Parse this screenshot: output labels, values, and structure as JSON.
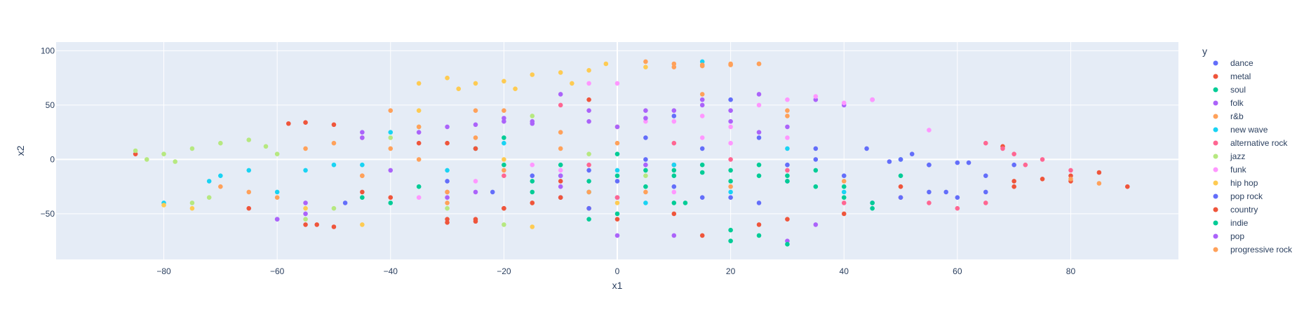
{
  "chart_data": {
    "type": "scatter",
    "title": "",
    "xlabel": "x1",
    "ylabel": "x2",
    "xlim": [
      -99,
      99
    ],
    "ylim": [
      -92,
      108
    ],
    "xticks": [
      -80,
      -60,
      -40,
      -20,
      0,
      20,
      40,
      60,
      80
    ],
    "yticks": [
      -50,
      0,
      50,
      100
    ],
    "tick_labels": {
      "x": [
        "−80",
        "−60",
        "−40",
        "−20",
        "0",
        "20",
        "40",
        "60",
        "80"
      ],
      "y": [
        "−50",
        "0",
        "50",
        "100"
      ]
    },
    "grid": true,
    "legend": {
      "title": "y",
      "placement": "right"
    },
    "series": [
      {
        "name": "dance",
        "color": "#636efa",
        "points": [
          [
            -48,
            -40
          ],
          [
            -22,
            -30
          ],
          [
            0,
            -35
          ],
          [
            5,
            20
          ],
          [
            10,
            40
          ],
          [
            30,
            -20
          ],
          [
            55,
            -5
          ],
          [
            58,
            -30
          ],
          [
            60,
            -35
          ],
          [
            62,
            -3
          ],
          [
            48,
            -2
          ],
          [
            52,
            5
          ],
          [
            15,
            -35
          ],
          [
            35,
            0
          ],
          [
            65,
            -15
          ],
          [
            -5,
            -10
          ],
          [
            20,
            55
          ],
          [
            -30,
            -20
          ],
          [
            44,
            10
          ],
          [
            70,
            -5
          ]
        ]
      },
      {
        "name": "metal",
        "color": "#ef553b",
        "points": [
          [
            -55,
            34
          ],
          [
            -50,
            32
          ],
          [
            -58,
            33
          ],
          [
            -30,
            -55
          ],
          [
            -25,
            -57
          ],
          [
            -53,
            -60
          ],
          [
            -85,
            5
          ],
          [
            70,
            -20
          ],
          [
            80,
            -15
          ],
          [
            85,
            -12
          ],
          [
            75,
            -18
          ],
          [
            90,
            -25
          ],
          [
            68,
            12
          ],
          [
            -30,
            15
          ],
          [
            -20,
            -45
          ],
          [
            -10,
            -20
          ],
          [
            50,
            -25
          ],
          [
            -40,
            -35
          ],
          [
            10,
            -5
          ],
          [
            -5,
            -45
          ]
        ]
      },
      {
        "name": "soul",
        "color": "#00cc96",
        "points": [
          [
            0,
            -15
          ],
          [
            10,
            -10
          ],
          [
            20,
            -20
          ],
          [
            15,
            -12
          ],
          [
            5,
            -25
          ],
          [
            -5,
            -30
          ],
          [
            25,
            -5
          ],
          [
            30,
            -15
          ],
          [
            -15,
            -20
          ],
          [
            -20,
            -5
          ],
          [
            35,
            -10
          ],
          [
            40,
            -25
          ],
          [
            45,
            -45
          ],
          [
            -25,
            10
          ],
          [
            -35,
            -25
          ],
          [
            20,
            -65
          ],
          [
            25,
            -70
          ],
          [
            -45,
            -35
          ],
          [
            0,
            5
          ],
          [
            12,
            -40
          ]
        ]
      },
      {
        "name": "folk",
        "color": "#ab63fa",
        "points": [
          [
            -20,
            35
          ],
          [
            -15,
            33
          ],
          [
            -5,
            35
          ],
          [
            -30,
            30
          ],
          [
            -60,
            -55
          ],
          [
            -25,
            -30
          ],
          [
            15,
            55
          ],
          [
            25,
            60
          ],
          [
            35,
            55
          ],
          [
            -10,
            60
          ],
          [
            5,
            45
          ],
          [
            -45,
            25
          ],
          [
            -10,
            -25
          ],
          [
            -40,
            -10
          ],
          [
            20,
            45
          ],
          [
            40,
            50
          ],
          [
            -55,
            -40
          ],
          [
            0,
            -70
          ],
          [
            30,
            -75
          ],
          [
            45,
            55
          ]
        ]
      },
      {
        "name": "r&b",
        "color": "#ffa15a",
        "points": [
          [
            10,
            88
          ],
          [
            15,
            86
          ],
          [
            20,
            87
          ],
          [
            25,
            88
          ],
          [
            5,
            90
          ],
          [
            -20,
            45
          ],
          [
            -40,
            45
          ],
          [
            -50,
            15
          ],
          [
            -60,
            -35
          ],
          [
            -30,
            -40
          ],
          [
            0,
            30
          ],
          [
            -25,
            20
          ],
          [
            -10,
            10
          ],
          [
            -45,
            -15
          ],
          [
            -70,
            -25
          ],
          [
            15,
            60
          ],
          [
            30,
            40
          ],
          [
            -35,
            0
          ],
          [
            -15,
            -40
          ],
          [
            -5,
            -30
          ]
        ]
      },
      {
        "name": "new wave",
        "color": "#19d3f3",
        "points": [
          [
            -70,
            -15
          ],
          [
            -65,
            -10
          ],
          [
            -72,
            -20
          ],
          [
            -55,
            -10
          ],
          [
            -50,
            -5
          ],
          [
            10,
            -5
          ],
          [
            20,
            -30
          ],
          [
            -45,
            -5
          ],
          [
            -30,
            -10
          ],
          [
            0,
            -10
          ],
          [
            5,
            -40
          ],
          [
            -20,
            15
          ],
          [
            30,
            10
          ],
          [
            -60,
            -30
          ],
          [
            15,
            90
          ],
          [
            -10,
            -15
          ],
          [
            40,
            -30
          ],
          [
            50,
            0
          ],
          [
            -40,
            25
          ],
          [
            -80,
            -40
          ]
        ]
      },
      {
        "name": "alternative rock",
        "color": "#ff6692",
        "points": [
          [
            70,
            5
          ],
          [
            75,
            0
          ],
          [
            68,
            10
          ],
          [
            65,
            15
          ],
          [
            72,
            -5
          ],
          [
            55,
            -40
          ],
          [
            60,
            -45
          ],
          [
            65,
            -40
          ],
          [
            -30,
            -30
          ],
          [
            -20,
            -15
          ],
          [
            10,
            15
          ],
          [
            40,
            -40
          ],
          [
            -10,
            50
          ],
          [
            20,
            0
          ],
          [
            30,
            -10
          ],
          [
            -45,
            20
          ],
          [
            50,
            -35
          ],
          [
            80,
            -10
          ],
          [
            -5,
            -5
          ],
          [
            0,
            -35
          ]
        ]
      },
      {
        "name": "jazz",
        "color": "#b6e880",
        "points": [
          [
            -85,
            8
          ],
          [
            -80,
            5
          ],
          [
            -75,
            10
          ],
          [
            -70,
            15
          ],
          [
            -65,
            18
          ],
          [
            -62,
            12
          ],
          [
            -78,
            -2
          ],
          [
            -83,
            0
          ],
          [
            -60,
            5
          ],
          [
            -72,
            -35
          ],
          [
            -75,
            -40
          ],
          [
            -40,
            20
          ],
          [
            -35,
            30
          ],
          [
            -5,
            5
          ],
          [
            -55,
            -55
          ],
          [
            -20,
            -60
          ],
          [
            5,
            -15
          ],
          [
            -50,
            -45
          ],
          [
            -30,
            -45
          ],
          [
            -15,
            40
          ]
        ]
      },
      {
        "name": "funk",
        "color": "#ff97ff",
        "points": [
          [
            10,
            35
          ],
          [
            15,
            40
          ],
          [
            20,
            30
          ],
          [
            25,
            50
          ],
          [
            30,
            55
          ],
          [
            35,
            58
          ],
          [
            40,
            52
          ],
          [
            45,
            55
          ],
          [
            -5,
            70
          ],
          [
            0,
            70
          ],
          [
            -10,
            -10
          ],
          [
            5,
            35
          ],
          [
            15,
            20
          ],
          [
            -15,
            -5
          ],
          [
            -25,
            -20
          ],
          [
            20,
            15
          ],
          [
            55,
            27
          ],
          [
            -35,
            -35
          ],
          [
            10,
            -30
          ],
          [
            30,
            20
          ]
        ]
      },
      {
        "name": "hip hop",
        "color": "#fecb52",
        "points": [
          [
            -30,
            75
          ],
          [
            -25,
            70
          ],
          [
            -20,
            72
          ],
          [
            -15,
            78
          ],
          [
            -10,
            80
          ],
          [
            -5,
            82
          ],
          [
            -35,
            70
          ],
          [
            -28,
            65
          ],
          [
            -18,
            65
          ],
          [
            -8,
            70
          ],
          [
            -2,
            88
          ],
          [
            5,
            85
          ],
          [
            -80,
            -42
          ],
          [
            -75,
            -45
          ],
          [
            -55,
            -45
          ],
          [
            -15,
            -62
          ],
          [
            -45,
            -60
          ],
          [
            -20,
            0
          ],
          [
            0,
            -40
          ],
          [
            -35,
            45
          ]
        ]
      },
      {
        "name": "pop rock",
        "color": "#636efa",
        "points": [
          [
            50,
            0
          ],
          [
            55,
            -5
          ],
          [
            60,
            -3
          ],
          [
            45,
            -40
          ],
          [
            50,
            -35
          ],
          [
            55,
            -30
          ],
          [
            20,
            -35
          ],
          [
            25,
            -40
          ],
          [
            15,
            10
          ],
          [
            -5,
            -45
          ],
          [
            30,
            -5
          ],
          [
            35,
            10
          ],
          [
            40,
            -15
          ],
          [
            10,
            -25
          ],
          [
            -10,
            -35
          ],
          [
            65,
            -30
          ],
          [
            5,
            0
          ],
          [
            -15,
            -15
          ],
          [
            0,
            -20
          ],
          [
            25,
            20
          ]
        ]
      },
      {
        "name": "country",
        "color": "#ef553b",
        "points": [
          [
            -30,
            -58
          ],
          [
            -25,
            -55
          ],
          [
            -20,
            -45
          ],
          [
            -15,
            -40
          ],
          [
            -10,
            -35
          ],
          [
            -35,
            15
          ],
          [
            -25,
            10
          ],
          [
            -55,
            -60
          ],
          [
            -50,
            -62
          ],
          [
            30,
            -55
          ],
          [
            25,
            -60
          ],
          [
            15,
            -70
          ],
          [
            70,
            -25
          ],
          [
            80,
            -20
          ],
          [
            -45,
            -30
          ],
          [
            -5,
            55
          ],
          [
            10,
            -50
          ],
          [
            -65,
            -45
          ],
          [
            0,
            -55
          ],
          [
            40,
            -50
          ]
        ]
      },
      {
        "name": "indie",
        "color": "#00cc96",
        "points": [
          [
            5,
            -10
          ],
          [
            10,
            -15
          ],
          [
            15,
            -5
          ],
          [
            20,
            -10
          ],
          [
            25,
            -15
          ],
          [
            30,
            -20
          ],
          [
            -5,
            -20
          ],
          [
            -10,
            -5
          ],
          [
            35,
            -25
          ],
          [
            40,
            -35
          ],
          [
            45,
            -40
          ],
          [
            50,
            -15
          ],
          [
            -15,
            -30
          ],
          [
            0,
            -50
          ],
          [
            -5,
            -55
          ],
          [
            20,
            -75
          ],
          [
            30,
            -78
          ],
          [
            -20,
            20
          ],
          [
            -40,
            -40
          ],
          [
            10,
            -40
          ]
        ]
      },
      {
        "name": "pop",
        "color": "#ab63fa",
        "points": [
          [
            -20,
            38
          ],
          [
            -15,
            35
          ],
          [
            -25,
            32
          ],
          [
            0,
            30
          ],
          [
            5,
            38
          ],
          [
            10,
            45
          ],
          [
            15,
            50
          ],
          [
            20,
            35
          ],
          [
            -35,
            25
          ],
          [
            -45,
            20
          ],
          [
            -55,
            -50
          ],
          [
            -60,
            -55
          ],
          [
            25,
            25
          ],
          [
            30,
            30
          ],
          [
            -10,
            -15
          ],
          [
            5,
            -5
          ],
          [
            -30,
            -35
          ],
          [
            10,
            -70
          ],
          [
            35,
            -60
          ],
          [
            -5,
            45
          ]
        ]
      },
      {
        "name": "progressive rock",
        "color": "#ffa15a",
        "points": [
          [
            15,
            87
          ],
          [
            20,
            88
          ],
          [
            25,
            88
          ],
          [
            10,
            85
          ],
          [
            85,
            -22
          ],
          [
            80,
            -18
          ],
          [
            -25,
            45
          ],
          [
            -35,
            30
          ],
          [
            -45,
            -15
          ],
          [
            -55,
            10
          ],
          [
            -65,
            -30
          ],
          [
            -20,
            -10
          ],
          [
            0,
            15
          ],
          [
            20,
            -25
          ],
          [
            40,
            -20
          ],
          [
            -30,
            -30
          ],
          [
            -10,
            25
          ],
          [
            5,
            -30
          ],
          [
            -40,
            10
          ],
          [
            30,
            45
          ]
        ]
      }
    ]
  }
}
